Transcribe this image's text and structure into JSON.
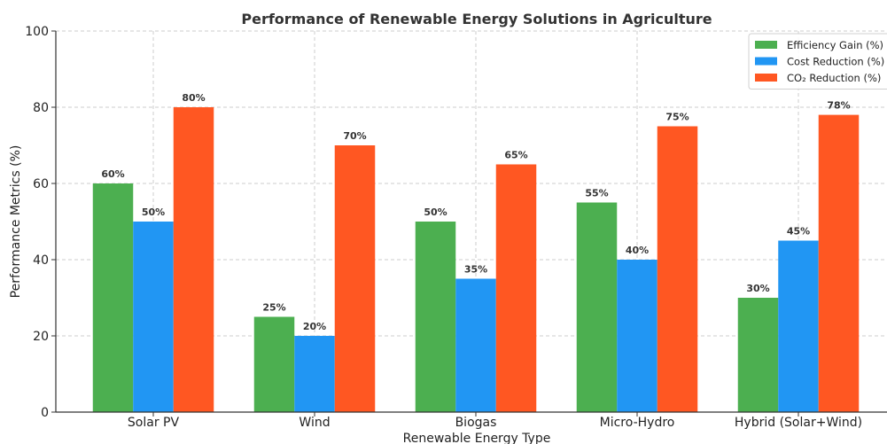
{
  "chart_data": {
    "type": "bar",
    "title": "Performance of Renewable Energy Solutions in Agriculture",
    "xlabel": "Renewable Energy Type",
    "ylabel": "Performance Metrics (%)",
    "ylim": [
      0,
      100
    ],
    "yticks": [
      0,
      20,
      40,
      60,
      80,
      100
    ],
    "grid": true,
    "legend_position": "top-right",
    "categories": [
      "Solar PV",
      "Wind",
      "Biogas",
      "Micro-Hydro",
      "Hybrid (Solar+Wind)"
    ],
    "series": [
      {
        "name": "Efficiency Gain (%)",
        "color": "#4CAF50",
        "values": [
          60,
          25,
          50,
          55,
          30
        ],
        "labels": [
          "60%",
          "25%",
          "50%",
          "55%",
          "30%"
        ]
      },
      {
        "name": "Cost Reduction (%)",
        "color": "#2196F3",
        "values": [
          50,
          20,
          35,
          40,
          45
        ],
        "labels": [
          "50%",
          "20%",
          "35%",
          "40%",
          "45%"
        ]
      },
      {
        "name": "CO₂ Reduction (%)",
        "color": "#FF5722",
        "values": [
          80,
          70,
          65,
          75,
          78
        ],
        "labels": [
          "80%",
          "70%",
          "65%",
          "75%",
          "78%"
        ]
      }
    ]
  }
}
